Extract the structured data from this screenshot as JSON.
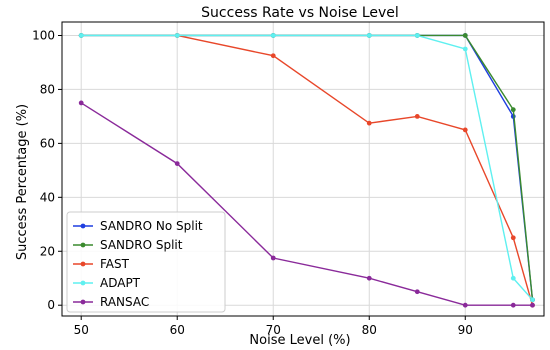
{
  "chart_data": {
    "type": "line",
    "title": "Success Rate vs Noise Level",
    "xlabel": "Noise Level (%)",
    "ylabel": "Success Percentage (%)",
    "xlim": [
      48,
      98.2
    ],
    "ylim": [
      -4,
      105
    ],
    "xticks": [
      50,
      60,
      70,
      80,
      90
    ],
    "yticks": [
      0,
      20,
      40,
      60,
      80,
      100
    ],
    "grid": true,
    "legend_position": "lower-left",
    "series": [
      {
        "name": "SANDRO No Split",
        "color": "#1f3fe0",
        "points": [
          [
            50,
            100
          ],
          [
            60,
            100
          ],
          [
            70,
            100
          ],
          [
            80,
            100
          ],
          [
            85,
            100
          ],
          [
            90,
            100
          ],
          [
            95,
            70
          ],
          [
            97,
            2
          ]
        ]
      },
      {
        "name": "SANDRO Split",
        "color": "#3a8a2e",
        "points": [
          [
            50,
            100
          ],
          [
            60,
            100
          ],
          [
            70,
            100
          ],
          [
            80,
            100
          ],
          [
            85,
            100
          ],
          [
            90,
            100
          ],
          [
            95,
            72.5
          ],
          [
            97,
            2
          ]
        ]
      },
      {
        "name": "FAST",
        "color": "#e8472a",
        "points": [
          [
            60,
            100
          ],
          [
            70,
            92.5
          ],
          [
            80,
            67.5
          ],
          [
            85,
            70
          ],
          [
            90,
            65
          ],
          [
            95,
            25
          ],
          [
            97,
            0
          ]
        ]
      },
      {
        "name": "ADAPT",
        "color": "#5ff0f0",
        "points": [
          [
            50,
            100
          ],
          [
            60,
            100
          ],
          [
            70,
            100
          ],
          [
            80,
            100
          ],
          [
            85,
            100
          ],
          [
            90,
            95
          ],
          [
            95,
            10
          ],
          [
            97,
            2
          ]
        ]
      },
      {
        "name": "RANSAC",
        "color": "#8a2a9a",
        "points": [
          [
            50,
            75
          ],
          [
            60,
            52.5
          ],
          [
            70,
            17.5
          ],
          [
            80,
            10
          ],
          [
            85,
            5
          ],
          [
            90,
            0
          ],
          [
            95,
            0
          ],
          [
            97,
            0
          ]
        ]
      }
    ]
  }
}
